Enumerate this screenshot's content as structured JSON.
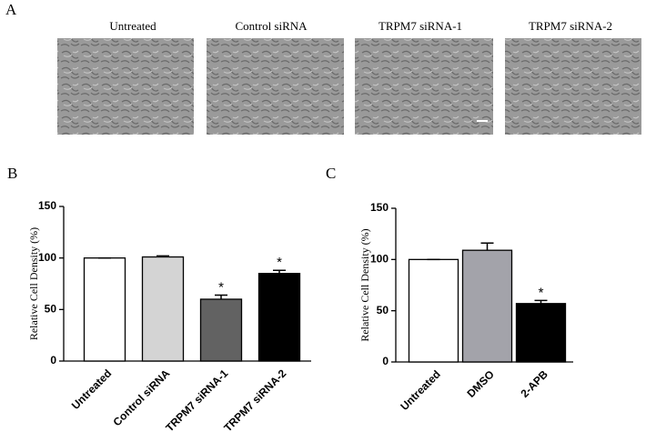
{
  "panel_labels": [
    "A",
    "B",
    "C"
  ],
  "images": [
    {
      "label": "Untreated"
    },
    {
      "label": "Control  siRNA"
    },
    {
      "label": "TRPM7  siRNA-1"
    },
    {
      "label": "TRPM7  siRNA-2"
    }
  ],
  "chart_data": [
    {
      "type": "bar",
      "y_label": "Relative  Cell Density  (%)",
      "categories": [
        "Untreated",
        "Control siRNA",
        "TRPM7 siRNA-1",
        "TRPM7 siRNA-2"
      ],
      "values": [
        100,
        101,
        60,
        85
      ],
      "errors": [
        0,
        1,
        4,
        3
      ],
      "colors": [
        "#ffffff",
        "#d4d4d4",
        "#626262",
        "#000000"
      ],
      "significance": [
        null,
        null,
        "*",
        "*"
      ],
      "ylim": [
        0,
        150
      ],
      "yticks": [
        0,
        50,
        100,
        150
      ]
    },
    {
      "type": "bar",
      "y_label": "Relative  Cell Density  (%)",
      "categories": [
        "Untreated",
        "DMSO",
        "2-APB"
      ],
      "values": [
        100,
        109,
        57
      ],
      "errors": [
        0,
        7,
        3
      ],
      "colors": [
        "#ffffff",
        "#a3a3aa",
        "#000000"
      ],
      "significance": [
        null,
        null,
        "*"
      ],
      "ylim": [
        0,
        150
      ],
      "yticks": [
        0,
        50,
        100,
        150
      ]
    }
  ]
}
